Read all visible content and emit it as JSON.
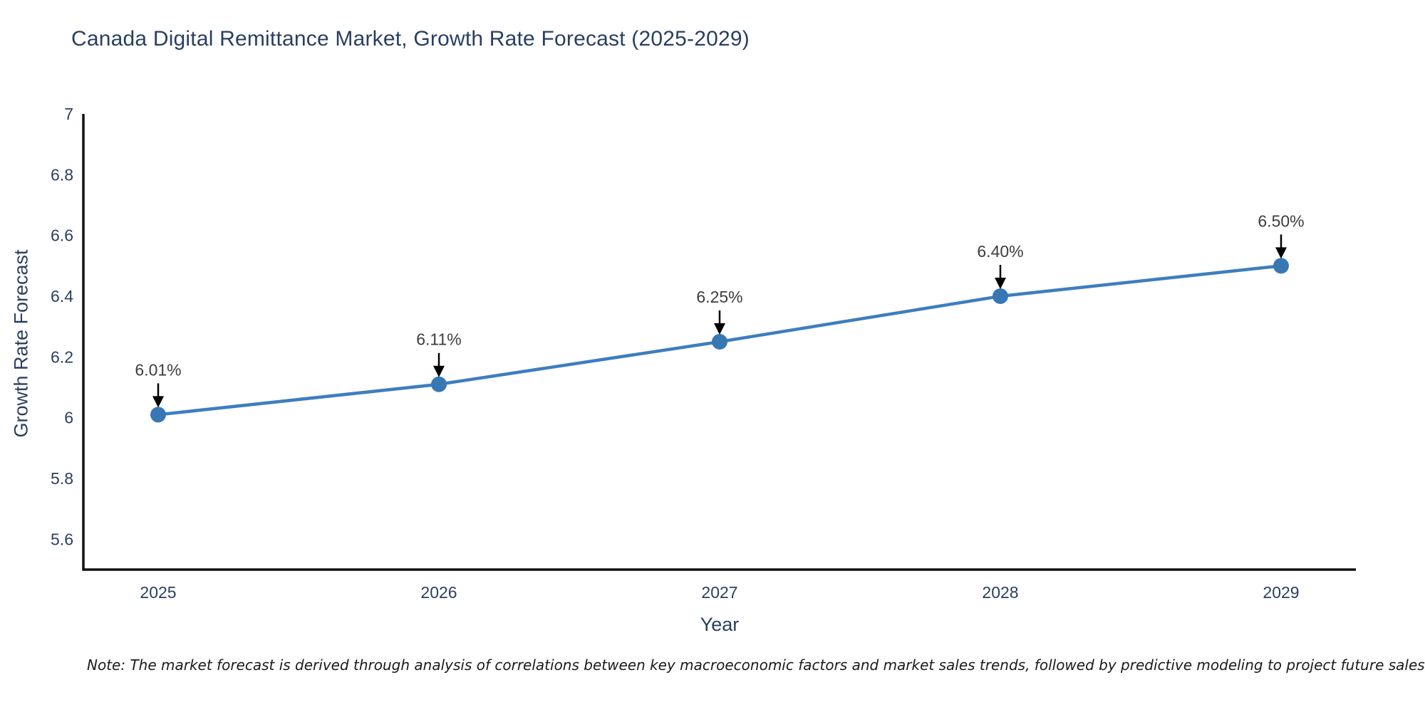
{
  "chart_data": {
    "type": "line",
    "title": "Canada Digital Remittance Market, Growth Rate Forecast (2025-2029)",
    "xlabel": "Year",
    "ylabel": "Growth Rate Forecast",
    "categories": [
      "2025",
      "2026",
      "2027",
      "2028",
      "2029"
    ],
    "values": [
      6.01,
      6.11,
      6.25,
      6.4,
      6.5
    ],
    "point_labels": [
      "6.01%",
      "6.11%",
      "6.25%",
      "6.40%",
      "6.50%"
    ],
    "ylim": [
      5.5,
      7.0
    ],
    "yticks": [
      5.6,
      5.8,
      6.0,
      6.2,
      6.4,
      6.6,
      6.8,
      7.0
    ],
    "ytick_labels": [
      "5.6",
      "5.8",
      "6",
      "6.2",
      "6.4",
      "6.6",
      "6.8",
      "7"
    ],
    "grid": false,
    "legend_position": "none",
    "line_color": "#3d7ebe",
    "marker_color": "#3778b3",
    "arrow_color": "#000000",
    "axis_color": "#111111"
  },
  "footnote": {
    "text": "Note: The market forecast is derived through analysis of correlations between key macroeconomic factors and market sales trends, followed by predictive modeling to project future sales."
  },
  "colors": {
    "title_text": "#2a3f5f",
    "tick_text": "#2a3f5f",
    "annotation_text": "#3d3d3d",
    "background": "#ffffff"
  }
}
